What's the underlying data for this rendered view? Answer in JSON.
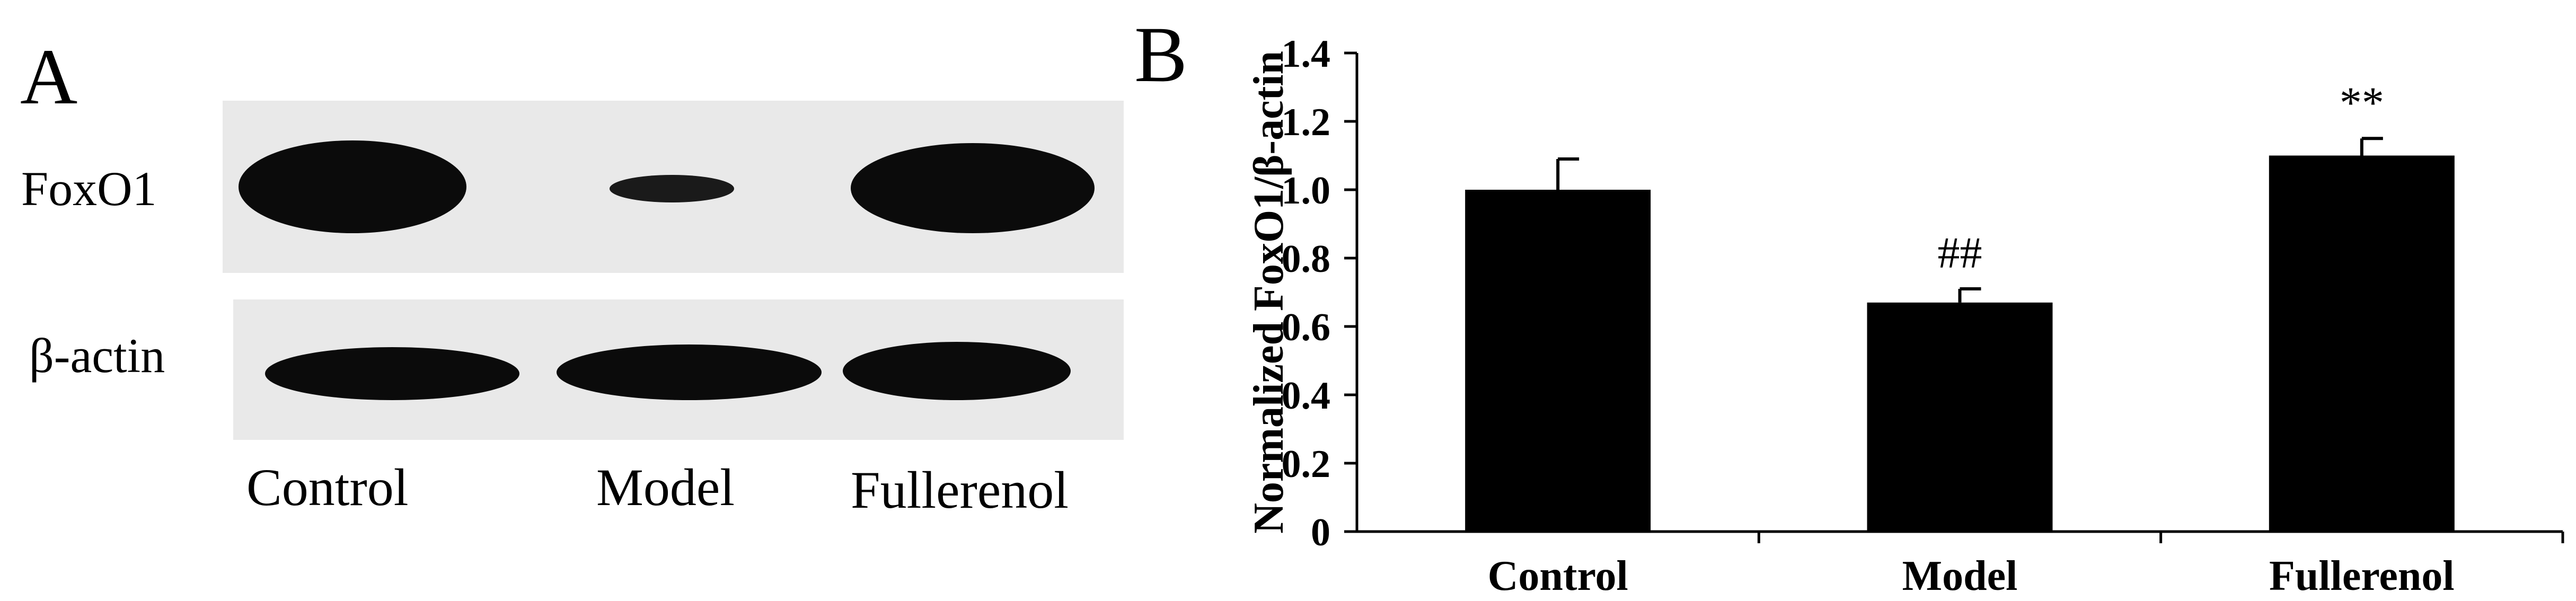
{
  "panel_a": {
    "letter": "A",
    "rows": [
      {
        "label": "FoxO1",
        "band_intensities": [
          1.0,
          0.22,
          0.95
        ]
      },
      {
        "label": "β-actin",
        "band_intensities": [
          0.9,
          0.9,
          0.85
        ]
      }
    ],
    "lanes": [
      "Control",
      "Model",
      "Fullerenol"
    ]
  },
  "panel_b": {
    "letter": "B"
  },
  "chart_data": {
    "type": "bar",
    "categories": [
      "Control",
      "Model",
      "Fullerenol"
    ],
    "values": [
      1.0,
      0.67,
      1.1
    ],
    "errors": [
      0.09,
      0.04,
      0.05
    ],
    "annotations": [
      "",
      "##",
      "**"
    ],
    "title": "",
    "xlabel": "",
    "ylabel": "Normalized FoxO1/β-actin",
    "ylim": [
      0,
      1.4
    ],
    "yticks": [
      "0",
      "0.2",
      "0.4",
      "0.6",
      "0.8",
      "1.0",
      "1.2",
      "1.4"
    ],
    "grid": false,
    "bar_color": "#000000"
  }
}
